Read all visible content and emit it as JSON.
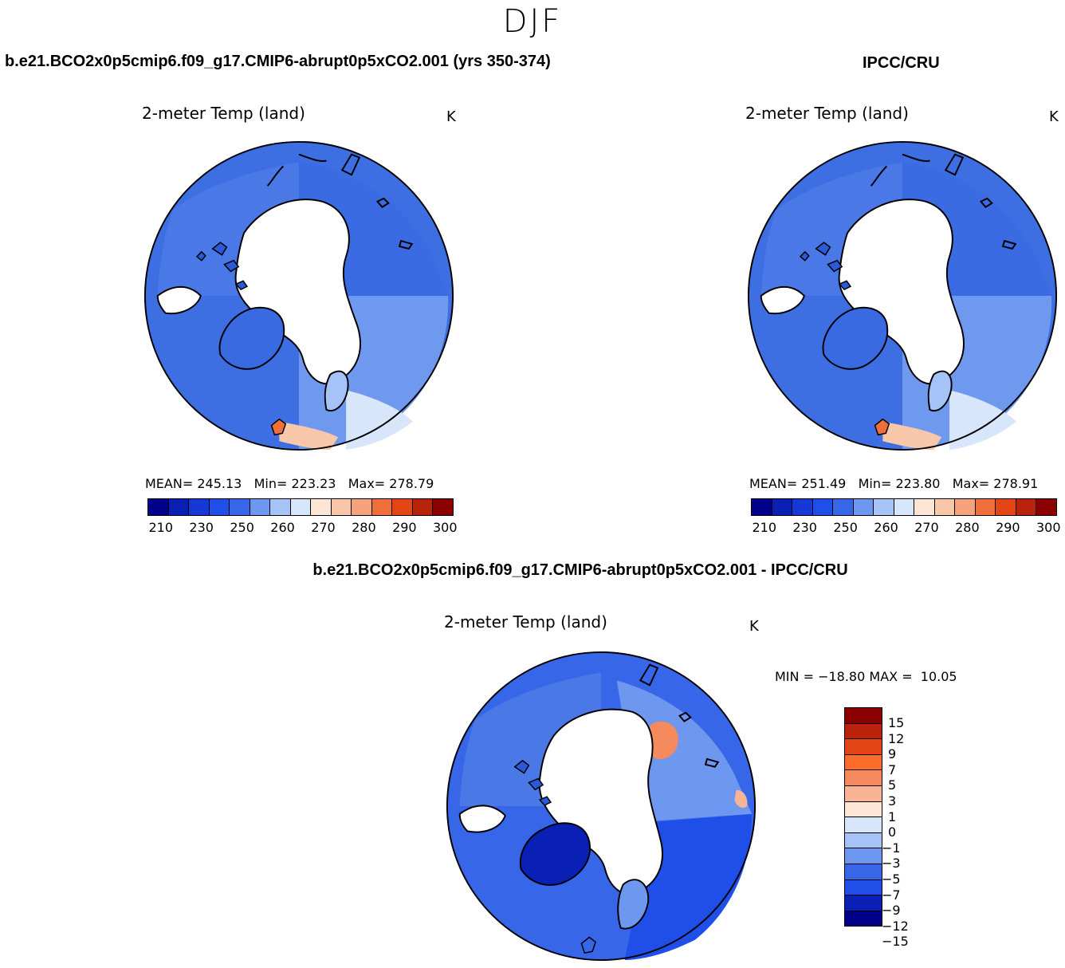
{
  "header": {
    "season": "DJF",
    "model_title": "b.e21.BCO2x0p5cmip6.f09_g17.CMIP6-abrupt0p5xCO2.001 (yrs 350-374)",
    "obs_title": "IPCC/CRU",
    "diff_title": "b.e21.BCO2x0p5cmip6.f09_g17.CMIP6-abrupt0p5xCO2.001 - IPCC/CRU"
  },
  "colors": {
    "abs_scale": [
      "#00008b",
      "#0a1fb4",
      "#1838d6",
      "#1f4fe8",
      "#3767e8",
      "#6e97f0",
      "#a5c3f6",
      "#d7e6fb",
      "#fde6d6",
      "#f9c8aa",
      "#f4a37c",
      "#ef6f3b",
      "#e44515",
      "#b9230c",
      "#8b0000"
    ],
    "diff_scale": [
      "#8b0000",
      "#b9230c",
      "#e44515",
      "#f96c2c",
      "#f48a5e",
      "#f9b495",
      "#fde6d6",
      "#d7e6fb",
      "#a5c3f6",
      "#6e97f0",
      "#3767e8",
      "#1f4fe8",
      "#0a1fb4",
      "#00008b"
    ]
  },
  "chart_data": [
    {
      "type": "heatmap",
      "projection": "north-polar-stereographic",
      "title": "2-meter Temp (land)",
      "units": "K",
      "mean_label": "MEAN=",
      "min_label": "Min=",
      "max_label": "Max=",
      "mean": "245.13",
      "min": "223.23",
      "max": "278.79",
      "colorbar_ticks": [
        "210",
        "230",
        "250",
        "260",
        "270",
        "280",
        "290",
        "300"
      ]
    },
    {
      "type": "heatmap",
      "projection": "north-polar-stereographic",
      "title": "2-meter Temp (land)",
      "units": "K",
      "mean_label": "MEAN=",
      "min_label": "Min=",
      "max_label": "Max=",
      "mean": "251.49",
      "min": "223.80",
      "max": "278.91",
      "colorbar_ticks": [
        "210",
        "230",
        "250",
        "260",
        "270",
        "280",
        "290",
        "300"
      ]
    },
    {
      "type": "heatmap",
      "projection": "north-polar-stereographic",
      "title": "2-meter Temp (land)",
      "units": "K",
      "min_label": "MIN =",
      "max_label": "MAX =",
      "min": "−18.80",
      "max": "10.05",
      "colorbar_ticks": [
        "15",
        "12",
        "9",
        "7",
        "5",
        "3",
        "1",
        "0",
        "−1",
        "−3",
        "−5",
        "−7",
        "−9",
        "−12",
        "−15"
      ]
    }
  ]
}
